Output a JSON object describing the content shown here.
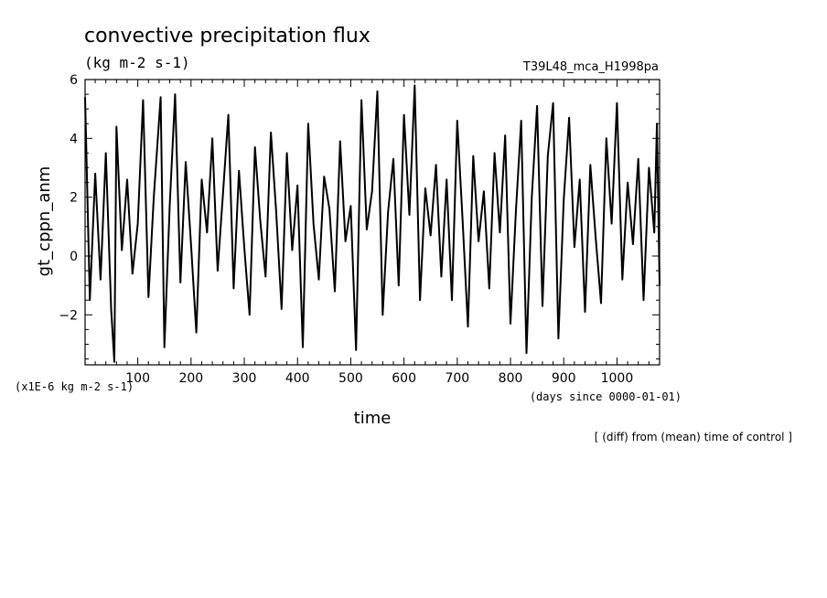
{
  "chart_data": {
    "type": "line",
    "title": "convective precipitation flux",
    "subtitle": "(kg m-2 s-1)",
    "run_label": "T39L48_mca_H1998pa",
    "xlabel": "time",
    "x_units": "(days since 0000-01-01)",
    "ylabel": "gt_cppn_anm",
    "y_scale_note": "(x1E-6 kg m-2 s-1)",
    "footnote": "[ (diff) from (mean) time of control ]",
    "xlim": [
      1,
      1080
    ],
    "ylim": [
      -3.7,
      6
    ],
    "x_ticks": [
      100,
      200,
      300,
      400,
      500,
      600,
      700,
      800,
      900,
      1000
    ],
    "x_tick_labels": [
      "100",
      "200",
      "300",
      "400",
      "500",
      "600",
      "700",
      "800",
      "900",
      "1000"
    ],
    "y_ticks": [
      -2,
      0,
      2,
      4,
      6
    ],
    "y_tick_labels": [
      "−2",
      "0",
      "2",
      "4",
      "6"
    ],
    "grid": false,
    "series": [
      {
        "color": "#000000",
        "x": [
          1,
          10,
          20,
          30,
          40,
          50,
          56,
          60,
          70,
          80,
          90,
          100,
          110,
          120,
          130,
          143,
          150,
          160,
          170,
          180,
          190,
          200,
          210,
          220,
          230,
          240,
          250,
          260,
          270,
          280,
          290,
          300,
          310,
          320,
          330,
          340,
          350,
          360,
          370,
          380,
          390,
          400,
          410,
          420,
          430,
          440,
          450,
          460,
          470,
          480,
          490,
          500,
          510,
          520,
          530,
          540,
          550,
          560,
          570,
          580,
          590,
          600,
          610,
          620,
          630,
          640,
          650,
          660,
          670,
          680,
          690,
          700,
          710,
          720,
          730,
          740,
          750,
          760,
          770,
          780,
          790,
          800,
          810,
          820,
          830,
          840,
          850,
          860,
          870,
          880,
          890,
          900,
          910,
          920,
          930,
          940,
          950,
          960,
          970,
          980,
          990,
          1000,
          1010,
          1020,
          1030,
          1040,
          1050,
          1060,
          1070,
          1075,
          1080
        ],
        "y": [
          5.4,
          -1.5,
          2.8,
          -0.8,
          3.5,
          -1.8,
          -3.6,
          4.4,
          0.2,
          2.6,
          -0.6,
          1.1,
          5.3,
          -1.4,
          2.0,
          5.4,
          -3.1,
          1.7,
          5.5,
          -0.9,
          3.2,
          0.4,
          -2.6,
          2.6,
          0.8,
          4.0,
          -0.5,
          2.1,
          4.8,
          -1.1,
          2.9,
          0.3,
          -2.0,
          3.7,
          1.2,
          -0.7,
          4.2,
          1.5,
          -1.8,
          3.5,
          0.2,
          2.4,
          -3.1,
          4.5,
          1.1,
          -0.8,
          2.7,
          1.6,
          -1.2,
          3.9,
          0.5,
          1.7,
          -3.2,
          5.3,
          0.9,
          2.2,
          5.6,
          -2.0,
          1.5,
          3.3,
          -1.0,
          4.8,
          1.4,
          5.8,
          -1.5,
          2.3,
          0.7,
          3.1,
          -0.7,
          2.6,
          -1.5,
          4.6,
          1.2,
          -2.4,
          3.4,
          0.5,
          2.2,
          -1.1,
          3.5,
          0.8,
          4.1,
          -2.3,
          1.5,
          4.6,
          -3.3,
          2.0,
          5.1,
          -1.7,
          3.4,
          5.2,
          -2.8,
          1.9,
          4.7,
          0.3,
          2.6,
          -1.9,
          3.1,
          0.6,
          -1.6,
          4.0,
          1.1,
          5.2,
          -0.8,
          2.5,
          0.4,
          3.3,
          -1.5,
          3.0,
          0.8,
          4.5,
          -1.0
        ]
      }
    ]
  }
}
